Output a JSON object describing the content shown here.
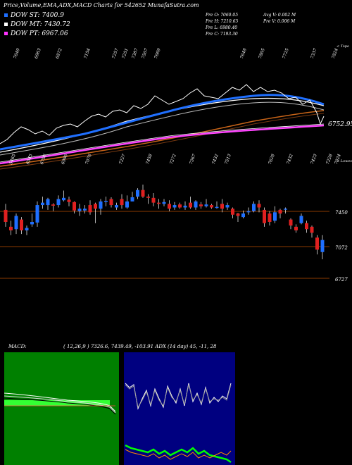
{
  "header": {
    "title": "Price,Volume,EMA,ADX,MACD Charts for 542652  MunafaSutra.com"
  },
  "legend": [
    {
      "label": "DOW ST: 7400.9",
      "color": "#1f6fff"
    },
    {
      "label": "DOW MT: 7430.72",
      "color": "#ffffff"
    },
    {
      "label": "DOW PT: 6967.06",
      "color": "#ff33ff"
    }
  ],
  "stats": {
    "col1": [
      "Pre  O: 7060.05",
      "Pre  H: 7210.65",
      "Pre  L: 6980.40",
      "Pre  C: 7193.30"
    ],
    "col2": [
      "Avg V: 0.002  M",
      "Pre  V: 0.006  M"
    ]
  },
  "top_panel": {
    "right_label_top": "< Topo",
    "right_label_bottom": "< Lowes",
    "last_price": "6752.95",
    "top_labels": [
      "7649",
      "6963",
      "6872",
      "7154",
      "7257",
      "7251",
      "7387",
      "7507",
      "7669",
      "7648",
      "7805",
      "7725",
      "7337",
      "7824"
    ],
    "bottom_labels": [
      "5465",
      "6545",
      "6796",
      "6986",
      "7076",
      "7227",
      "7458",
      "7272",
      "7367",
      "7432",
      "7513",
      "7628",
      "7432",
      "7423",
      "7228",
      "7024"
    ]
  },
  "chart_data": {
    "type": "candlestick",
    "price_levels": [
      "7450",
      "7072",
      "6727"
    ],
    "candles": [
      {
        "o": 7290,
        "c": 7190,
        "h": 7340,
        "l": 7150
      },
      {
        "o": 7150,
        "c": 7120,
        "h": 7200,
        "l": 7080
      },
      {
        "o": 7130,
        "c": 7240,
        "h": 7260,
        "l": 7090
      },
      {
        "o": 7210,
        "c": 7120,
        "h": 7230,
        "l": 7090
      },
      {
        "o": 7120,
        "c": 7140,
        "h": 7160,
        "l": 7080
      },
      {
        "o": 7170,
        "c": 7190,
        "h": 7260,
        "l": 7150
      },
      {
        "o": 7185,
        "c": 7330,
        "h": 7360,
        "l": 7150
      },
      {
        "o": 7330,
        "c": 7350,
        "h": 7400,
        "l": 7300
      },
      {
        "o": 7330,
        "c": 7380,
        "h": 7390,
        "l": 7290
      },
      {
        "o": 7335,
        "c": 7325,
        "h": 7345,
        "l": 7280
      },
      {
        "o": 7330,
        "c": 7380,
        "h": 7410,
        "l": 7310
      },
      {
        "o": 7370,
        "c": 7390,
        "h": 7450,
        "l": 7360
      },
      {
        "o": 7375,
        "c": 7355,
        "h": 7400,
        "l": 7320
      },
      {
        "o": 7355,
        "c": 7285,
        "h": 7360,
        "l": 7260
      },
      {
        "o": 7280,
        "c": 7300,
        "h": 7340,
        "l": 7240
      },
      {
        "o": 7285,
        "c": 7300,
        "h": 7330,
        "l": 7260
      },
      {
        "o": 7330,
        "c": 7270,
        "h": 7370,
        "l": 7250
      },
      {
        "o": 7340,
        "c": 7300,
        "h": 7350,
        "l": 7180
      },
      {
        "o": 7300,
        "c": 7360,
        "h": 7380,
        "l": 7250
      },
      {
        "o": 7360,
        "c": 7365,
        "h": 7400,
        "l": 7320
      },
      {
        "o": 7380,
        "c": 7330,
        "h": 7395,
        "l": 7310
      },
      {
        "o": 7310,
        "c": 7330,
        "h": 7350,
        "l": 7290
      },
      {
        "o": 7380,
        "c": 7330,
        "h": 7420,
        "l": 7300
      },
      {
        "o": 7310,
        "c": 7360,
        "h": 7410,
        "l": 7300
      },
      {
        "o": 7360,
        "c": 7395,
        "h": 7440,
        "l": 7360
      },
      {
        "o": 7400,
        "c": 7455,
        "h": 7470,
        "l": 7380
      },
      {
        "o": 7455,
        "c": 7400,
        "h": 7500,
        "l": 7390
      },
      {
        "o": 7400,
        "c": 7390,
        "h": 7420,
        "l": 7340
      },
      {
        "o": 7390,
        "c": 7350,
        "h": 7430,
        "l": 7320
      },
      {
        "o": 7350,
        "c": 7340,
        "h": 7380,
        "l": 7300
      },
      {
        "o": 7340,
        "c": 7355,
        "h": 7380,
        "l": 7320
      },
      {
        "o": 7340,
        "c": 7300,
        "h": 7370,
        "l": 7280
      },
      {
        "o": 7310,
        "c": 7330,
        "h": 7355,
        "l": 7290
      },
      {
        "o": 7335,
        "c": 7310,
        "h": 7350,
        "l": 7300
      },
      {
        "o": 7310,
        "c": 7325,
        "h": 7360,
        "l": 7290
      },
      {
        "o": 7350,
        "c": 7310,
        "h": 7400,
        "l": 7300
      },
      {
        "o": 7310,
        "c": 7360,
        "h": 7370,
        "l": 7290
      },
      {
        "o": 7335,
        "c": 7320,
        "h": 7355,
        "l": 7300
      },
      {
        "o": 7320,
        "c": 7335,
        "h": 7380,
        "l": 7310
      },
      {
        "o": 7330,
        "c": 7310,
        "h": 7340,
        "l": 7300
      },
      {
        "o": 7310,
        "c": 7315,
        "h": 7360,
        "l": 7300
      },
      {
        "o": 7340,
        "c": 7300,
        "h": 7380,
        "l": 7270
      },
      {
        "o": 7310,
        "c": 7330,
        "h": 7350,
        "l": 7290
      },
      {
        "o": 7300,
        "c": 7250,
        "h": 7310,
        "l": 7220
      },
      {
        "o": 7260,
        "c": 7240,
        "h": 7265,
        "l": 7190
      },
      {
        "o": 7230,
        "c": 7260,
        "h": 7285,
        "l": 7220
      },
      {
        "o": 7270,
        "c": 7280,
        "h": 7310,
        "l": 7250
      },
      {
        "o": 7280,
        "c": 7340,
        "h": 7360,
        "l": 7270
      },
      {
        "o": 7340,
        "c": 7310,
        "h": 7370,
        "l": 7270
      },
      {
        "o": 7290,
        "c": 7180,
        "h": 7310,
        "l": 7150
      },
      {
        "o": 7260,
        "c": 7190,
        "h": 7280,
        "l": 7160
      },
      {
        "o": 7200,
        "c": 7270,
        "h": 7320,
        "l": 7180
      },
      {
        "o": 7290,
        "c": 7260,
        "h": 7300,
        "l": 7220
      },
      {
        "o": 7300,
        "c": 7300,
        "h": 7310,
        "l": 7260
      },
      {
        "o": 7210,
        "c": 7160,
        "h": 7220,
        "l": 7130
      },
      {
        "o": 7150,
        "c": 7120,
        "h": 7170,
        "l": 7100
      },
      {
        "o": 7180,
        "c": 7240,
        "h": 7260,
        "l": 7170
      },
      {
        "o": 7180,
        "c": 7130,
        "h": 7200,
        "l": 7100
      },
      {
        "o": 7150,
        "c": 7100,
        "h": 7160,
        "l": 7060
      },
      {
        "o": 7060,
        "c": 6960,
        "h": 7080,
        "l": 6920
      },
      {
        "o": 6940,
        "c": 7040,
        "h": 7080,
        "l": 6880
      }
    ]
  },
  "macd_panel": {
    "label": "MACD:",
    "values": "( 12,26,9 ) 7326.6,  7439.49, -103.91 ADX",
    "bg_color": "#008000"
  },
  "adx_panel": {
    "values": "(14  day) 45,  -11,  28",
    "bg_color": "#000080"
  }
}
